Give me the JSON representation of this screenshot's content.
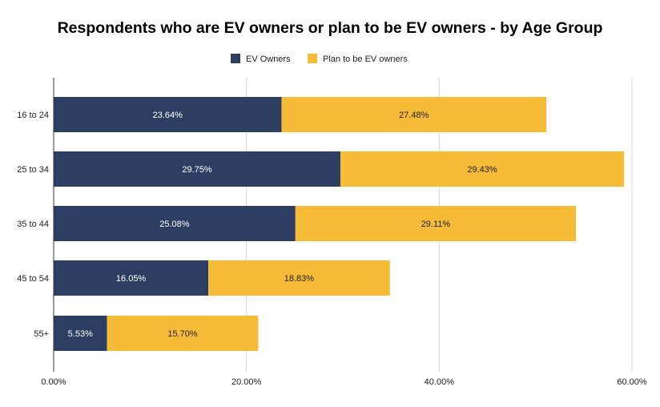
{
  "chart_data": {
    "type": "bar",
    "orientation": "horizontal",
    "stacked": true,
    "title": "Respondents who are EV owners or plan to be EV owners - by Age Group",
    "xlabel": "",
    "ylabel": "",
    "categories": [
      "16 to 24",
      "25 to 34",
      "35 to 44",
      "45 to 54",
      "55+"
    ],
    "series": [
      {
        "name": "EV Owners",
        "color": "#2d3e63",
        "values": [
          23.64,
          29.75,
          25.08,
          16.05,
          5.53
        ],
        "labels": [
          "23.64%",
          "29.75%",
          "25.08%",
          "16.05%",
          "5.53%"
        ]
      },
      {
        "name": "Plan to be EV owners",
        "color": "#f6bb37",
        "values": [
          27.48,
          29.43,
          29.11,
          18.83,
          15.7
        ],
        "labels": [
          "27.48%",
          "29.43%",
          "29.11%",
          "18.83%",
          "15.70%"
        ]
      }
    ],
    "xlim": [
      0,
      60
    ],
    "xticks": [
      0,
      20,
      40,
      60
    ],
    "xtick_labels": [
      "0.00%",
      "20.00%",
      "40.00%",
      "60.00%"
    ],
    "grid": true,
    "legend_position": "top"
  }
}
